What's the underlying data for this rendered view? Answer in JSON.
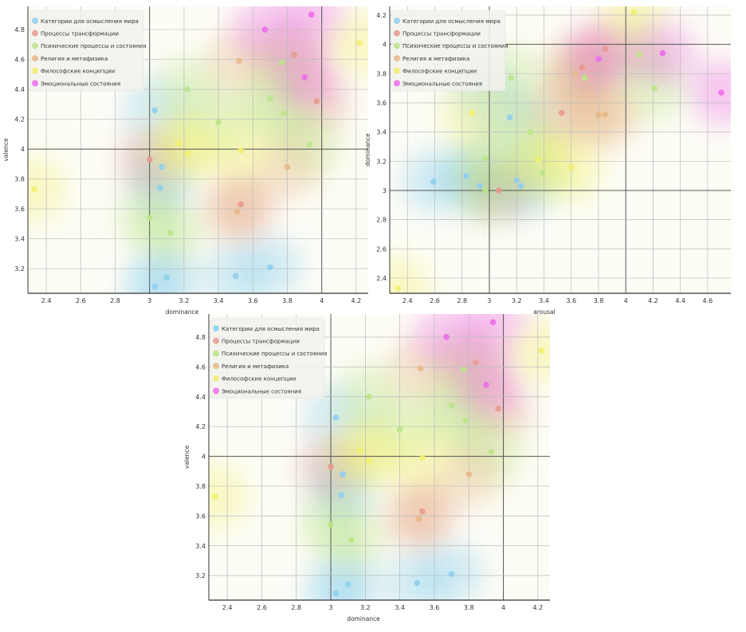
{
  "categories": [
    {
      "name": "Категории для осмысления мира",
      "color": "#8fcfee"
    },
    {
      "name": "Процессы трансформации",
      "color": "#e89a90"
    },
    {
      "name": "Психические процессы и состояния",
      "color": "#bde48a"
    },
    {
      "name": "Религия и метафизика",
      "color": "#e8b88a"
    },
    {
      "name": "Философские концепции",
      "color": "#f2ef70"
    },
    {
      "name": "Эмоциональные состояния",
      "color": "#ec6ee8"
    }
  ],
  "chart_data": [
    {
      "type": "scatter",
      "xlabel": "dominance",
      "ylabel": "valence",
      "xlim": [
        2.293,
        4.27
      ],
      "ylim": [
        3.035,
        4.955
      ],
      "xticks": [
        2.4,
        2.6,
        2.8,
        3,
        3.2,
        3.4,
        3.6,
        3.8,
        4,
        4.2
      ],
      "yticks": [
        3.2,
        3.4,
        3.6,
        3.8,
        4,
        4.2,
        4.4,
        4.6,
        4.8
      ],
      "grid": true,
      "legend": "top-left",
      "series": [
        {
          "name": "Категории для осмысления мира",
          "points": [
            [
              3.03,
              4.26
            ],
            [
              3.07,
              3.88
            ],
            [
              3.06,
              3.74
            ],
            [
              3.03,
              3.08
            ],
            [
              3.1,
              3.14
            ],
            [
              3.5,
              3.15
            ],
            [
              3.7,
              3.21
            ]
          ]
        },
        {
          "name": "Процессы трансформации",
          "points": [
            [
              3.0,
              3.93
            ],
            [
              3.53,
              3.63
            ],
            [
              3.84,
              4.63
            ],
            [
              3.97,
              4.32
            ]
          ]
        },
        {
          "name": "Психические процессы и состояния",
          "points": [
            [
              3.22,
              4.4
            ],
            [
              3.4,
              4.18
            ],
            [
              3.0,
              3.54
            ],
            [
              3.12,
              3.44
            ],
            [
              3.77,
              4.58
            ],
            [
              3.7,
              4.34
            ],
            [
              3.78,
              4.24
            ],
            [
              3.93,
              4.03
            ]
          ]
        },
        {
          "name": "Религия и метафизика",
          "points": [
            [
              3.52,
              4.59
            ],
            [
              3.8,
              3.88
            ],
            [
              3.51,
              3.58
            ]
          ]
        },
        {
          "name": "Философские концепции",
          "points": [
            [
              2.33,
              3.73
            ],
            [
              3.17,
              4.04
            ],
            [
              3.22,
              3.97
            ],
            [
              3.53,
              3.99
            ],
            [
              4.22,
              4.71
            ]
          ]
        },
        {
          "name": "Эмоциональные состояния",
          "points": [
            [
              3.67,
              4.8
            ],
            [
              3.94,
              4.9
            ],
            [
              3.9,
              4.48
            ]
          ]
        }
      ]
    },
    {
      "type": "scatter",
      "xlabel": "arousal",
      "ylabel": "dominance",
      "xlim": [
        2.27,
        4.77
      ],
      "ylim": [
        2.296,
        4.26
      ],
      "xticks": [
        2.4,
        2.6,
        2.8,
        3,
        3.2,
        3.4,
        3.6,
        3.8,
        4,
        4.2,
        4.4,
        4.6
      ],
      "yticks": [
        2.4,
        2.6,
        2.8,
        3,
        3.2,
        3.4,
        3.6,
        3.8,
        4,
        4.2
      ],
      "grid": true,
      "legend": "top-left",
      "series": [
        {
          "name": "Категории для осмысления мира",
          "points": [
            [
              2.59,
              3.06
            ],
            [
              2.83,
              3.1
            ],
            [
              2.93,
              3.03
            ],
            [
              3.15,
              3.5
            ],
            [
              3.2,
              3.07
            ],
            [
              3.23,
              3.03
            ],
            [
              2.93,
              3.7
            ]
          ]
        },
        {
          "name": "Процессы трансформации",
          "points": [
            [
              3.07,
              3.0
            ],
            [
              3.53,
              3.53
            ],
            [
              3.68,
              3.84
            ],
            [
              3.85,
              3.97
            ]
          ]
        },
        {
          "name": "Психические процессы и состояния",
          "points": [
            [
              2.97,
              3.0
            ],
            [
              2.97,
              3.22
            ],
            [
              3.16,
              3.77
            ],
            [
              3.3,
              3.4
            ],
            [
              3.39,
              3.12
            ],
            [
              3.7,
              3.77
            ],
            [
              4.1,
              3.93
            ],
            [
              4.21,
              3.7
            ]
          ]
        },
        {
          "name": "Религия и метафизика",
          "points": [
            [
              3.63,
              3.8
            ],
            [
              3.8,
              3.52
            ],
            [
              3.85,
              3.52
            ]
          ]
        },
        {
          "name": "Философские концепции",
          "points": [
            [
              2.33,
              2.33
            ],
            [
              2.87,
              3.53
            ],
            [
              3.36,
              3.21
            ],
            [
              3.6,
              3.16
            ],
            [
              4.06,
              4.22
            ]
          ]
        },
        {
          "name": "Эмоциональные состояния",
          "points": [
            [
              3.8,
              3.9
            ],
            [
              4.27,
              3.94
            ],
            [
              4.7,
              3.67
            ]
          ]
        }
      ]
    },
    {
      "type": "scatter",
      "xlabel": "dominance",
      "ylabel": "valence",
      "xlim": [
        2.293,
        4.27
      ],
      "ylim": [
        3.035,
        4.955
      ],
      "xticks": [
        2.4,
        2.6,
        2.8,
        3,
        3.2,
        3.4,
        3.6,
        3.8,
        4,
        4.2
      ],
      "yticks": [
        3.2,
        3.4,
        3.6,
        3.8,
        4,
        4.2,
        4.4,
        4.6,
        4.8
      ],
      "grid": true,
      "legend": "top-left",
      "series": [
        {
          "name": "Категории для осмысления мира",
          "points": [
            [
              3.03,
              4.26
            ],
            [
              3.07,
              3.88
            ],
            [
              3.06,
              3.74
            ],
            [
              3.03,
              3.08
            ],
            [
              3.1,
              3.14
            ],
            [
              3.5,
              3.15
            ],
            [
              3.7,
              3.21
            ]
          ]
        },
        {
          "name": "Процессы трансформации",
          "points": [
            [
              3.0,
              3.93
            ],
            [
              3.53,
              3.63
            ],
            [
              3.84,
              4.63
            ],
            [
              3.97,
              4.32
            ]
          ]
        },
        {
          "name": "Психические процессы и состояния",
          "points": [
            [
              3.22,
              4.4
            ],
            [
              3.4,
              4.18
            ],
            [
              3.0,
              3.54
            ],
            [
              3.12,
              3.44
            ],
            [
              3.77,
              4.58
            ],
            [
              3.7,
              4.34
            ],
            [
              3.78,
              4.24
            ],
            [
              3.93,
              4.03
            ]
          ]
        },
        {
          "name": "Религия и метафизика",
          "points": [
            [
              3.52,
              4.59
            ],
            [
              3.8,
              3.88
            ],
            [
              3.51,
              3.58
            ]
          ]
        },
        {
          "name": "Философские концепции",
          "points": [
            [
              2.33,
              3.73
            ],
            [
              3.17,
              4.04
            ],
            [
              3.22,
              3.97
            ],
            [
              3.53,
              3.99
            ],
            [
              4.22,
              4.71
            ]
          ]
        },
        {
          "name": "Эмоциональные состояния",
          "points": [
            [
              3.67,
              4.8
            ],
            [
              3.94,
              4.9
            ],
            [
              3.9,
              4.48
            ]
          ]
        }
      ]
    }
  ]
}
